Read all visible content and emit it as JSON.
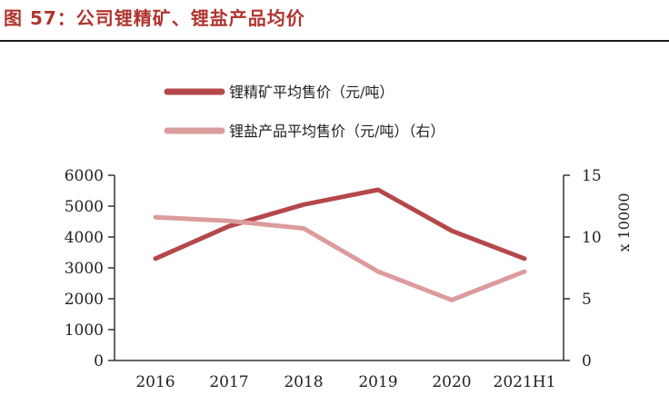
{
  "figure": {
    "title": "图 57：公司锂精矿、锂盐产品均价"
  },
  "chart_data": {
    "type": "line",
    "categories": [
      "2016",
      "2017",
      "2018",
      "2019",
      "2020",
      "2021H1"
    ],
    "series": [
      {
        "name": "锂精矿平均售价（元/吨）",
        "axis": "left",
        "color": "#b5484b",
        "values": [
          3300,
          4350,
          5050,
          5530,
          4200,
          3300
        ]
      },
      {
        "name": "锂盐产品平均售价（元/吨）（右）",
        "axis": "right",
        "color": "#dc9b9c",
        "values": [
          11.6,
          11.3,
          10.7,
          7.2,
          4.9,
          7.2
        ]
      }
    ],
    "y_left": {
      "lim": [
        0,
        6000
      ],
      "ticks": [
        "0",
        "1000",
        "2000",
        "3000",
        "4000",
        "5000",
        "6000"
      ]
    },
    "y_right": {
      "lim": [
        0,
        15
      ],
      "ticks": [
        "0",
        "5",
        "10",
        "15"
      ],
      "label": "x 10000"
    },
    "legend_position": "top",
    "grid": false
  }
}
